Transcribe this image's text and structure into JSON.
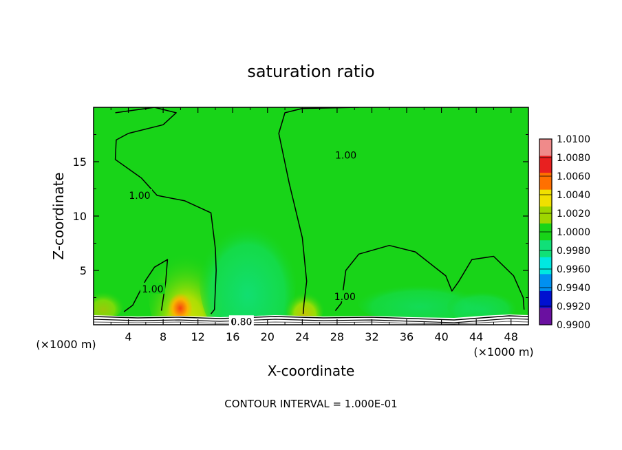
{
  "chart_data": {
    "type": "heatmap",
    "title": "saturation ratio",
    "xlabel": "X-coordinate",
    "ylabel": "Z-coordinate",
    "x_unit": "(×1000 m)",
    "footer": "CONTOUR INTERVAL = 1.000E-01",
    "xlim": [
      0,
      50
    ],
    "ylim": [
      0,
      20
    ],
    "x_ticks": [
      "4",
      "8",
      "12",
      "16",
      "20",
      "24",
      "28",
      "32",
      "36",
      "40",
      "44",
      "48"
    ],
    "y_ticks": [
      "5",
      "10",
      "15"
    ],
    "colorbar_labels": [
      "1.0100",
      "1.0080",
      "1.0060",
      "1.0040",
      "1.0020",
      "1.0000",
      "0.9980",
      "0.9960",
      "0.9940",
      "0.9920",
      "0.9900"
    ],
    "colorbar_colors": [
      "#f08a8a",
      "#e82020",
      "#ff7000",
      "#f0e000",
      "#9ed600",
      "#18d418",
      "#10e078",
      "#00e8e0",
      "#0090f0",
      "#0010d0",
      "#6a10a0"
    ],
    "contour_labels": [
      {
        "text": "1.00",
        "x": 5.3,
        "z": 11.9
      },
      {
        "text": "1.00",
        "x": 6.8,
        "z": 3.3
      },
      {
        "text": "1.00",
        "x": 29.0,
        "z": 15.6
      },
      {
        "text": "1.00",
        "x": 28.9,
        "z": 2.6
      },
      {
        "text": "0.80",
        "x": 17.0,
        "z": 0.3
      }
    ],
    "contour_1_00_left": [
      [
        2.5,
        19.5
      ],
      [
        7,
        20
      ],
      [
        9.5,
        19.5
      ],
      [
        8,
        18.4
      ],
      [
        4,
        17.6
      ],
      [
        2.6,
        17
      ],
      [
        2.5,
        15.2
      ],
      [
        5.5,
        13.5
      ],
      [
        7.3,
        11.9
      ],
      [
        10.5,
        11.4
      ],
      [
        13.5,
        10.3
      ],
      [
        14,
        7
      ],
      [
        14.1,
        5
      ],
      [
        13.9,
        1.4
      ],
      [
        13.5,
        1
      ]
    ],
    "contour_1_00_right": [
      [
        30.5,
        20
      ],
      [
        24,
        19.9
      ],
      [
        22,
        19.5
      ],
      [
        21.3,
        17.6
      ],
      [
        22.5,
        13
      ],
      [
        24,
        8
      ],
      [
        24.5,
        4
      ],
      [
        24.2,
        2
      ],
      [
        24.1,
        1
      ]
    ],
    "contour_1_00_bottom": [
      [
        27.8,
        1.3
      ],
      [
        28.5,
        2
      ],
      [
        29,
        5
      ],
      [
        30.5,
        6.5
      ],
      [
        34,
        7.3
      ],
      [
        37,
        6.7
      ],
      [
        40.5,
        4.5
      ],
      [
        41.2,
        3.1
      ],
      [
        42,
        4
      ],
      [
        43.5,
        6
      ],
      [
        46,
        6.3
      ],
      [
        48.3,
        4.5
      ],
      [
        49.4,
        2.5
      ],
      [
        49.5,
        1.4
      ]
    ],
    "contour_1_00_lowleft": [
      [
        3.5,
        1.2
      ],
      [
        4.5,
        1.8
      ],
      [
        6,
        4.1
      ],
      [
        7,
        5.3
      ],
      [
        8.5,
        6
      ],
      [
        8.3,
        4
      ],
      [
        7.8,
        1.3
      ]
    ]
  }
}
